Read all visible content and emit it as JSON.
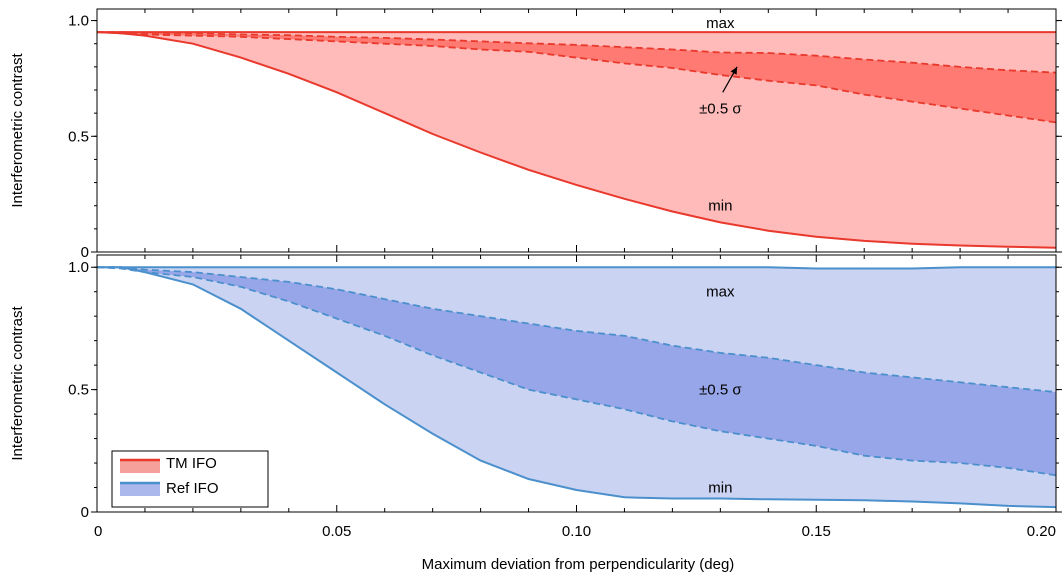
{
  "chart_data": {
    "type": "area",
    "xlabel": "Maximum deviation from perpendicularity (deg)",
    "xlim": [
      0,
      0.2
    ],
    "x_ticks": [
      0,
      0.05,
      0.1,
      0.15,
      0.2
    ],
    "x_tick_labels": [
      "0",
      "0.05",
      "0.10",
      "0.15",
      "0.20"
    ],
    "legend": {
      "placement": "lower-left of bottom panel",
      "entries": [
        {
          "label": "TM IFO",
          "line_color": "#e8392c",
          "fill_color": "#f5a09a"
        },
        {
          "label": "Ref IFO",
          "line_color": "#4b90cc",
          "fill_color": "#aab8ec"
        }
      ]
    },
    "panels": [
      {
        "name": "top",
        "ylabel": "Interferometric contrast",
        "ylim": [
          0,
          1.05
        ],
        "y_ticks": [
          0,
          0.5,
          1.0
        ],
        "y_tick_labels": [
          "0",
          "0.5",
          "1.0"
        ],
        "line_color": "#e8392c",
        "outer_fill": "#ffbaba",
        "inner_fill": "#ff7a72",
        "annotations": [
          {
            "text": "max",
            "x": 0.13,
            "y": 0.99
          },
          {
            "text": "±0.5 σ",
            "x": 0.13,
            "y": 0.62
          },
          {
            "text": "min",
            "x": 0.13,
            "y": 0.2
          }
        ],
        "arrow": {
          "from": [
            0.1305,
            0.69
          ],
          "to": [
            0.1335,
            0.8
          ]
        },
        "x": [
          0,
          0.005,
          0.01,
          0.02,
          0.03,
          0.04,
          0.05,
          0.06,
          0.07,
          0.08,
          0.09,
          0.1,
          0.11,
          0.12,
          0.13,
          0.14,
          0.15,
          0.16,
          0.17,
          0.18,
          0.19,
          0.2
        ],
        "max": [
          0.95,
          0.95,
          0.95,
          0.95,
          0.95,
          0.95,
          0.95,
          0.95,
          0.95,
          0.95,
          0.95,
          0.95,
          0.95,
          0.95,
          0.95,
          0.95,
          0.95,
          0.95,
          0.95,
          0.95,
          0.95,
          0.95
        ],
        "upper": [
          0.95,
          0.95,
          0.948,
          0.945,
          0.94,
          0.937,
          0.93,
          0.925,
          0.918,
          0.91,
          0.902,
          0.895,
          0.885,
          0.875,
          0.862,
          0.86,
          0.848,
          0.832,
          0.818,
          0.8,
          0.785,
          0.775
        ],
        "lower": [
          0.95,
          0.945,
          0.94,
          0.935,
          0.93,
          0.92,
          0.91,
          0.9,
          0.89,
          0.875,
          0.865,
          0.84,
          0.815,
          0.795,
          0.765,
          0.74,
          0.72,
          0.68,
          0.65,
          0.62,
          0.59,
          0.56
        ],
        "min": [
          0.95,
          0.945,
          0.935,
          0.9,
          0.84,
          0.77,
          0.69,
          0.6,
          0.51,
          0.43,
          0.355,
          0.29,
          0.23,
          0.175,
          0.128,
          0.092,
          0.066,
          0.048,
          0.036,
          0.028,
          0.023,
          0.018
        ]
      },
      {
        "name": "bottom",
        "ylabel": "Interferometric contrast",
        "ylim": [
          0,
          1.05
        ],
        "y_ticks": [
          0,
          0.5,
          1.0
        ],
        "y_tick_labels": [
          "0",
          "0.5",
          "1.0"
        ],
        "line_color": "#4b90cc",
        "outer_fill": "#cad3f2",
        "inner_fill": "#97a6e8",
        "annotations": [
          {
            "text": "max",
            "x": 0.13,
            "y": 0.9
          },
          {
            "text": "±0.5 σ",
            "x": 0.13,
            "y": 0.5
          },
          {
            "text": "min",
            "x": 0.13,
            "y": 0.1
          }
        ],
        "x": [
          0,
          0.005,
          0.01,
          0.02,
          0.03,
          0.04,
          0.05,
          0.06,
          0.07,
          0.08,
          0.09,
          0.1,
          0.11,
          0.12,
          0.13,
          0.14,
          0.15,
          0.16,
          0.17,
          0.18,
          0.19,
          0.2
        ],
        "max": [
          1.0,
          1.0,
          1.0,
          1.0,
          1.0,
          1.0,
          1.0,
          1.0,
          1.0,
          1.0,
          1.0,
          1.0,
          1.0,
          1.0,
          1.0,
          1.0,
          0.995,
          0.995,
          0.995,
          1.0,
          1.0,
          1.0
        ],
        "upper": [
          1.0,
          1.0,
          0.99,
          0.98,
          0.96,
          0.94,
          0.91,
          0.87,
          0.83,
          0.8,
          0.77,
          0.74,
          0.72,
          0.68,
          0.65,
          0.63,
          0.6,
          0.57,
          0.55,
          0.53,
          0.51,
          0.49
        ],
        "lower": [
          1.0,
          0.995,
          0.98,
          0.96,
          0.92,
          0.86,
          0.79,
          0.72,
          0.64,
          0.57,
          0.5,
          0.46,
          0.42,
          0.37,
          0.33,
          0.3,
          0.27,
          0.23,
          0.21,
          0.2,
          0.18,
          0.15
        ],
        "min": [
          1.0,
          1.0,
          0.98,
          0.93,
          0.83,
          0.7,
          0.57,
          0.44,
          0.32,
          0.21,
          0.135,
          0.09,
          0.06,
          0.055,
          0.055,
          0.052,
          0.05,
          0.048,
          0.043,
          0.035,
          0.025,
          0.02
        ]
      }
    ]
  }
}
